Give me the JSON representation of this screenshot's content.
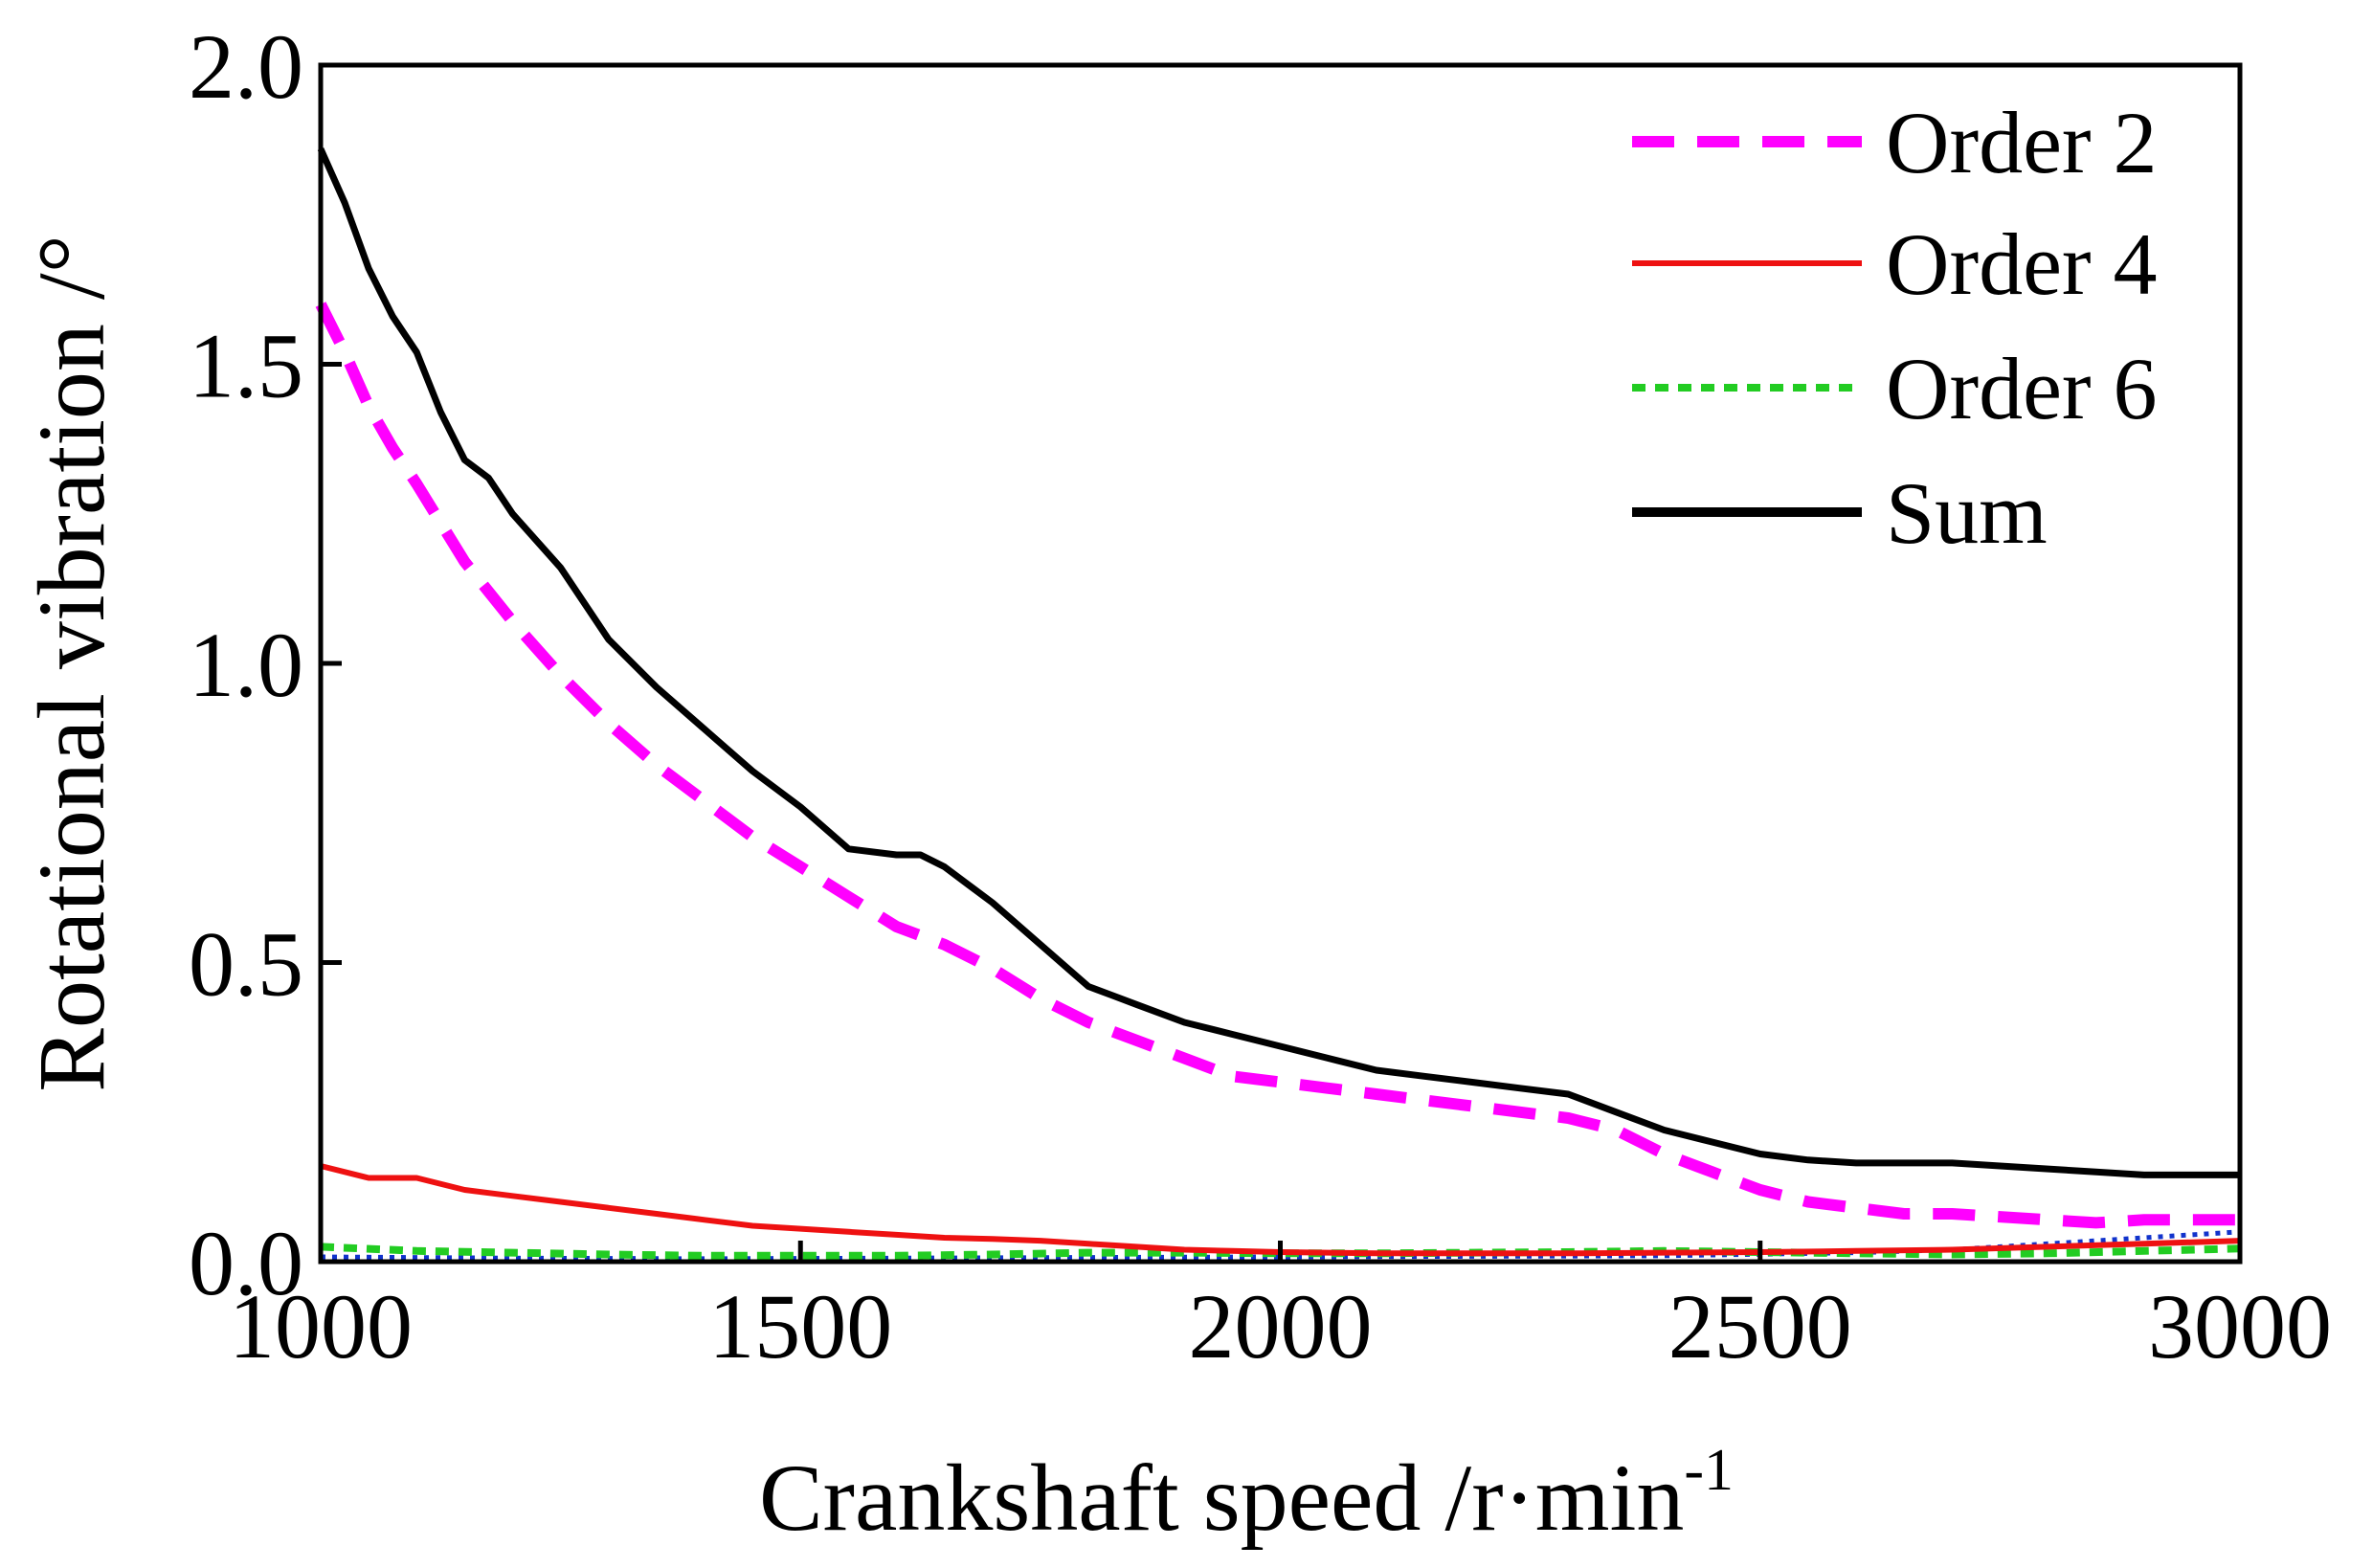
{
  "chart_data": {
    "type": "line",
    "title": "",
    "xlabel": "Crankshaft speed /r·min",
    "xlabel_superscript": "-1",
    "ylabel": "Rotational vibration /°",
    "xlim": [
      1000,
      3000
    ],
    "ylim": [
      0,
      2.0
    ],
    "xticks": [
      1000,
      1500,
      2000,
      2500,
      3000
    ],
    "xtick_labels": [
      "1000",
      "1500",
      "2000",
      "2500",
      "3000"
    ],
    "yticks": [
      0.0,
      0.5,
      1.0,
      1.5,
      2.0
    ],
    "ytick_labels": [
      "0.0",
      "0.5",
      "1.0",
      "1.5",
      "2.0"
    ],
    "grid": false,
    "legend_position": "top-right",
    "series": [
      {
        "name": "Order 2",
        "color": "#ff00ff",
        "style": "dashed",
        "x": [
          1000,
          1025,
          1050,
          1075,
          1100,
          1150,
          1200,
          1250,
          1300,
          1350,
          1400,
          1450,
          1500,
          1550,
          1600,
          1650,
          1700,
          1750,
          1800,
          1850,
          1900,
          1950,
          2000,
          2050,
          2100,
          2150,
          2200,
          2250,
          2300,
          2350,
          2400,
          2450,
          2500,
          2550,
          2600,
          2650,
          2700,
          2750,
          2800,
          2850,
          2900,
          2950,
          3000
        ],
        "values": [
          1.6,
          1.52,
          1.43,
          1.36,
          1.3,
          1.17,
          1.07,
          0.98,
          0.9,
          0.83,
          0.77,
          0.71,
          0.66,
          0.61,
          0.56,
          0.53,
          0.49,
          0.44,
          0.4,
          0.37,
          0.34,
          0.31,
          0.3,
          0.29,
          0.28,
          0.27,
          0.26,
          0.25,
          0.24,
          0.22,
          0.18,
          0.15,
          0.12,
          0.1,
          0.09,
          0.08,
          0.08,
          0.075,
          0.07,
          0.065,
          0.07,
          0.07,
          0.07
        ]
      },
      {
        "name": "Order 4",
        "color": "#ee1111",
        "style": "solid",
        "x": [
          1000,
          1050,
          1100,
          1150,
          1200,
          1250,
          1300,
          1350,
          1400,
          1450,
          1500,
          1550,
          1600,
          1650,
          1700,
          1750,
          1800,
          1850,
          1900,
          1950,
          2000,
          2100,
          2200,
          2300,
          2400,
          2500,
          2600,
          2700,
          2800,
          2900,
          3000
        ],
        "values": [
          0.16,
          0.14,
          0.14,
          0.12,
          0.11,
          0.1,
          0.09,
          0.08,
          0.07,
          0.06,
          0.055,
          0.05,
          0.045,
          0.04,
          0.038,
          0.035,
          0.03,
          0.025,
          0.02,
          0.018,
          0.016,
          0.014,
          0.014,
          0.014,
          0.015,
          0.016,
          0.018,
          0.02,
          0.025,
          0.03,
          0.035
        ]
      },
      {
        "name": "Order 6",
        "color": "#22cc22",
        "style": "dotted",
        "x": [
          1000,
          1100,
          1200,
          1300,
          1400,
          1500,
          1600,
          1700,
          1800,
          1900,
          2000,
          2100,
          2200,
          2300,
          2400,
          2500,
          2600,
          2700,
          2800,
          2900,
          3000
        ],
        "values": [
          0.025,
          0.018,
          0.015,
          0.012,
          0.01,
          0.01,
          0.01,
          0.012,
          0.015,
          0.015,
          0.014,
          0.014,
          0.015,
          0.016,
          0.018,
          0.016,
          0.014,
          0.012,
          0.014,
          0.018,
          0.022
        ]
      },
      {
        "name": "Sum",
        "color": "#000000",
        "style": "solid",
        "x": [
          1000,
          1025,
          1050,
          1075,
          1100,
          1125,
          1150,
          1175,
          1200,
          1250,
          1300,
          1350,
          1400,
          1450,
          1500,
          1550,
          1600,
          1625,
          1650,
          1675,
          1700,
          1750,
          1800,
          1825,
          1850,
          1900,
          1950,
          2000,
          2050,
          2100,
          2150,
          2200,
          2250,
          2300,
          2350,
          2400,
          2450,
          2500,
          2550,
          2600,
          2650,
          2700,
          2750,
          2800,
          2850,
          2900,
          2950,
          3000
        ],
        "values": [
          1.86,
          1.77,
          1.66,
          1.58,
          1.52,
          1.42,
          1.34,
          1.31,
          1.25,
          1.16,
          1.04,
          0.96,
          0.89,
          0.82,
          0.76,
          0.69,
          0.68,
          0.68,
          0.66,
          0.63,
          0.6,
          0.53,
          0.46,
          0.445,
          0.43,
          0.4,
          0.38,
          0.36,
          0.34,
          0.32,
          0.31,
          0.3,
          0.29,
          0.28,
          0.25,
          0.22,
          0.2,
          0.18,
          0.17,
          0.165,
          0.165,
          0.165,
          0.16,
          0.155,
          0.15,
          0.145,
          0.145,
          0.145
        ]
      },
      {
        "name": "",
        "color": "#1133cc",
        "style": "dotted-fine",
        "x": [
          1000,
          1200,
          1400,
          1600,
          1800,
          2000,
          2200,
          2400,
          2600,
          2700,
          2800,
          2900,
          3000
        ],
        "values": [
          0.008,
          0.006,
          0.005,
          0.006,
          0.007,
          0.008,
          0.009,
          0.01,
          0.015,
          0.02,
          0.03,
          0.04,
          0.05
        ]
      }
    ]
  }
}
